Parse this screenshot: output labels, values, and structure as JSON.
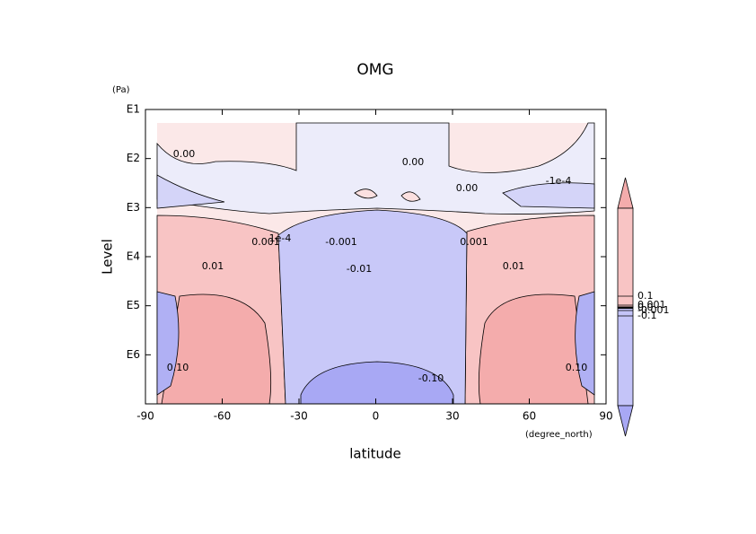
{
  "chart_data": {
    "type": "contour",
    "title": "OMG",
    "xlabel": "latitude",
    "ylabel": "Level",
    "xunits": "(degree_north)",
    "yunits": "(Pa)",
    "xlim": [
      -90,
      90
    ],
    "xticks": [
      -90,
      -60,
      -30,
      0,
      30,
      60,
      90
    ],
    "ylim": [
      10,
      10000000
    ],
    "y_log": true,
    "y_inverted": true,
    "yticks": [
      {
        "value": 10,
        "label": "E1"
      },
      {
        "value": 100,
        "label": "E2"
      },
      {
        "value": 1000,
        "label": "E3"
      },
      {
        "value": 10000,
        "label": "E4"
      },
      {
        "value": 100000,
        "label": "E5"
      },
      {
        "value": 1000000,
        "label": "E6"
      }
    ],
    "contour_labels": [
      "0.00",
      "0.00",
      "0.00",
      "-1e-4",
      "1e-4",
      "0.001",
      "-0.001",
      "0.001",
      "0.01",
      "-0.01",
      "0.01",
      "-0.10",
      "0.10",
      "0.10"
    ],
    "colorbar_ticks": [
      {
        "value": 0.1,
        "label": "0.1"
      },
      {
        "value": 0.001,
        "label": "0.001"
      },
      {
        "value": 0,
        "label": "0.0"
      },
      {
        "value": -0.001,
        "label": "-0.001"
      },
      {
        "value": -0.1,
        "label": "-0.1"
      }
    ],
    "colors": {
      "positive": "#f8c4c4",
      "negative": "#c4c4f8"
    }
  }
}
